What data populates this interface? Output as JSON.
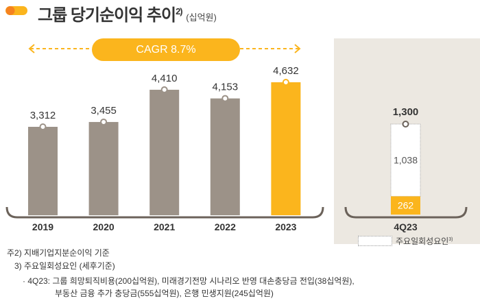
{
  "header": {
    "title": "그룹 당기순이익 추이",
    "title_sup": "2)",
    "unit": "(십억원)",
    "bullet_colors": [
      "#f58220",
      "#fbb51d"
    ]
  },
  "cagr_label": "CAGR 8.7%",
  "colors": {
    "gray": "#9c9288",
    "accent": "#fbb51d",
    "axis": "#6b625a",
    "panel": "#ece8e1"
  },
  "chart_data": [
    {
      "type": "bar",
      "categories": [
        "2019",
        "2020",
        "2021",
        "2022",
        "2023"
      ],
      "values": [
        3312,
        3455,
        4410,
        4153,
        4632
      ],
      "labels": [
        "3,312",
        "3,455",
        "4,410",
        "4,153",
        "4,632"
      ],
      "highlight": "2023"
    },
    {
      "type": "bar",
      "stacked": true,
      "categories": [
        "4Q23"
      ],
      "total": 1300,
      "total_label": "1,300",
      "series": [
        {
          "values": [
            262
          ],
          "label": "262"
        },
        {
          "name": "주요일회성요인",
          "name_sup": "3)",
          "values": [
            1038
          ],
          "label": "1,038"
        }
      ]
    }
  ],
  "notes": {
    "n2": "주2) 지배기업지분순이익 기준",
    "n3": "3) 주요일회성요인 (세후기준)",
    "n3a": "· 4Q23: 그룹 희망퇴직비용(200십억원), 미래경기전망 시나리오 반영 대손충당금 전입(38십억원),",
    "n3b": "부동산 금융 추가 충당금(555십억원), 은행 민생지원(245십억원)"
  }
}
